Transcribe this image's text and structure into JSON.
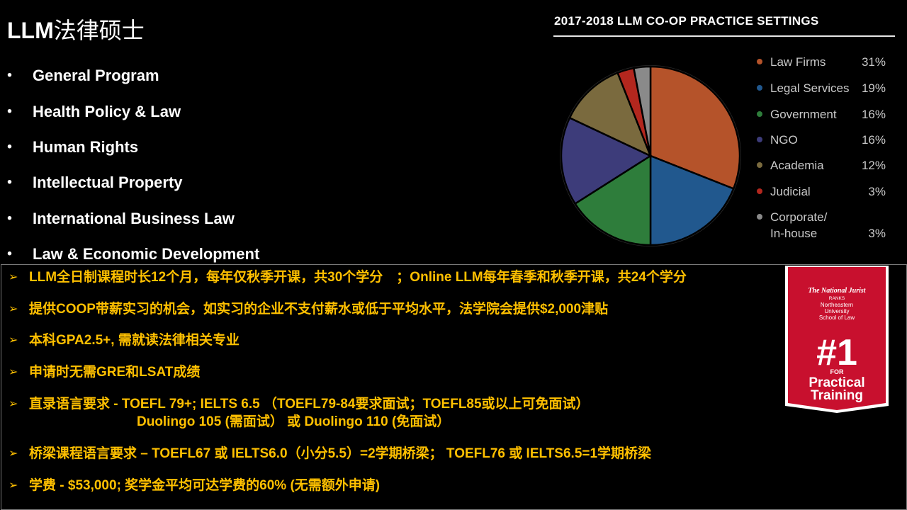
{
  "title": {
    "latin": "LLM",
    "chinese": "法律硕士"
  },
  "programs": [
    "General Program",
    "Health Policy & Law",
    "Human Rights",
    "Intellectual Property",
    "International Business Law",
    "Law & Economic Development"
  ],
  "bullet_glyph": "•",
  "chart_data": {
    "type": "pie",
    "title": "2017-2018 LLM CO-OP PRACTICE SETTINGS",
    "labels": [
      "Law Firms",
      "Legal Services",
      "Government",
      "NGO",
      "Academia",
      "Judicial",
      "Corporate/ In-house"
    ],
    "values": [
      31,
      19,
      16,
      16,
      12,
      3,
      3
    ],
    "value_labels": [
      "31%",
      "19%",
      "16%",
      "16%",
      "12%",
      "3%",
      "3%"
    ],
    "colors": [
      "#b5532a",
      "#21588e",
      "#2e7d3b",
      "#3d3c7a",
      "#7a6a3e",
      "#b3271e",
      "#8a8a8a"
    ],
    "legend_label_lines": [
      [
        "Law Firms"
      ],
      [
        "Legal Services"
      ],
      [
        "Government"
      ],
      [
        "NGO"
      ],
      [
        "Academia"
      ],
      [
        "Judicial"
      ],
      [
        "Corporate/",
        "In-house"
      ]
    ],
    "legend_position": "right"
  },
  "points": [
    {
      "text": "LLM全日制课程时长12个月，每年仅秋季开课，共30个学分　；Online LLM每年春季和秋季开课，共24个学分"
    },
    {
      "text": "提供COOP带薪实习的机会，如实习的企业不支付薪水或低于平均水平，法学院会提供$2,000津贴"
    },
    {
      "text": "本科GPA2.5+, 需就读法律相关专业"
    },
    {
      "text": "申请时无需GRE和LSAT成绩"
    },
    {
      "text": "直录语言要求 - TOEFL 79+; IELTS 6.5 （TOEFL79-84要求面试；TOEFL85或以上可免面试）",
      "sub": "Duolingo 105 (需面试） 或 Duolingo 110 (免面试）"
    },
    {
      "text": "桥梁课程语言要求 – TOEFL67 或 IELTS6.0（小分5.5）=2学期桥梁；  TOEFL76 或 IELTS6.5=1学期桥梁"
    },
    {
      "text": "学费 - $53,000; 奖学金平均可达学费的60% (无需额外申请)"
    }
  ],
  "arrow_glyph": "➢",
  "badge": {
    "line1": "The National Jurist",
    "line2": "RANKS",
    "line3": "Northeastern",
    "line4": "University",
    "line5": "School of Law",
    "rank": "#1",
    "line6": "FOR",
    "line7": "Practical",
    "line8": "Training",
    "color": "#c8102e"
  }
}
